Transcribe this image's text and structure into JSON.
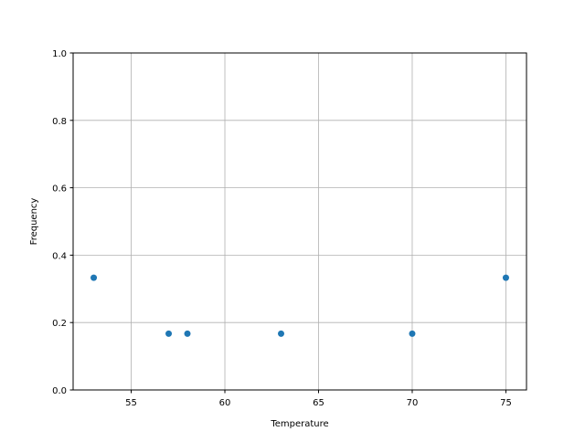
{
  "chart_data": {
    "type": "scatter",
    "title": "",
    "xlabel": "Temperature",
    "ylabel": "Frequency",
    "xlim": [
      51.9,
      76.1
    ],
    "ylim": [
      0,
      1.0
    ],
    "grid": true,
    "xticks": [
      55,
      60,
      65,
      70,
      75
    ],
    "xtick_labels": [
      "55",
      "60",
      "65",
      "70",
      "75"
    ],
    "yticks": [
      0,
      0.2,
      0.4,
      0.6,
      0.8,
      1.0
    ],
    "ytick_labels": [
      "0.0",
      "0.2",
      "0.4",
      "0.6",
      "0.8",
      "1.0"
    ],
    "points": [
      {
        "x": 53,
        "y": 0.333
      },
      {
        "x": 57,
        "y": 0.167
      },
      {
        "x": 58,
        "y": 0.167
      },
      {
        "x": 63,
        "y": 0.167
      },
      {
        "x": 70,
        "y": 0.167
      },
      {
        "x": 75,
        "y": 0.333
      }
    ],
    "color": "#1f77b4"
  }
}
